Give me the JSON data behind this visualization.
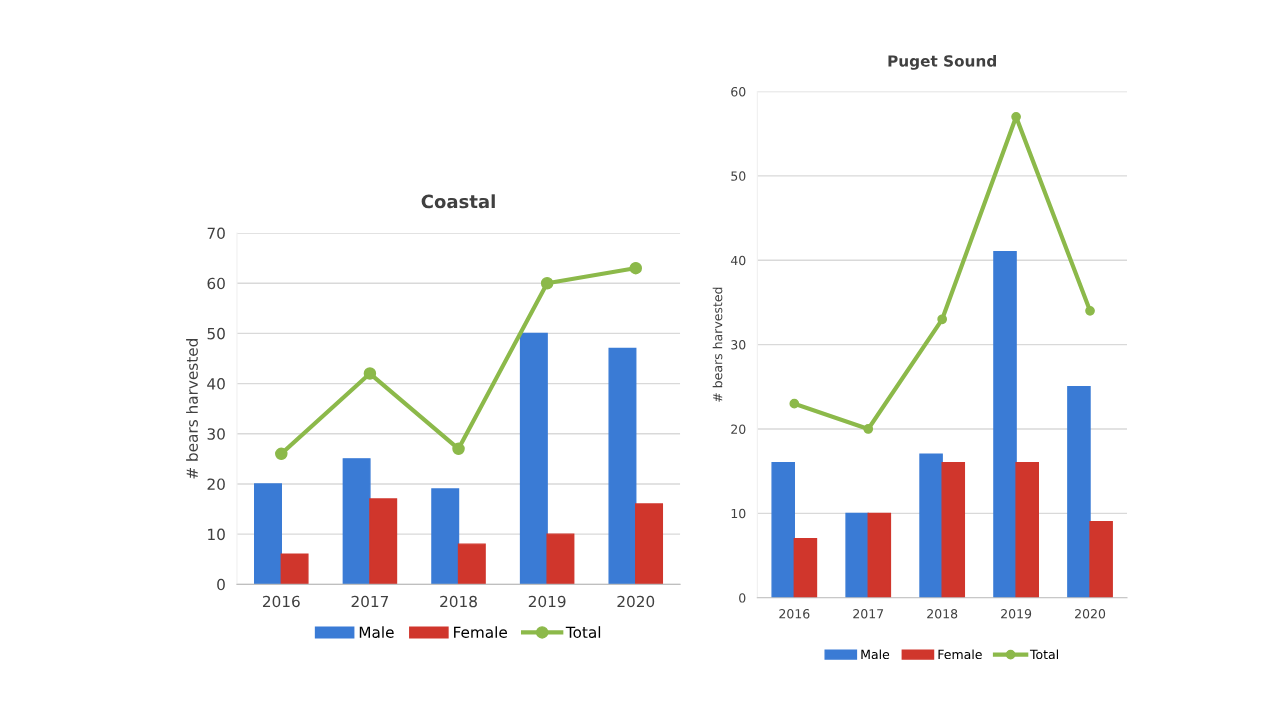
{
  "chart_data": [
    {
      "type": "bar",
      "title": "Coastal",
      "ylabel": "# bears harvested",
      "categories": [
        "2016",
        "2017",
        "2018",
        "2019",
        "2020"
      ],
      "ylim": [
        0,
        70
      ],
      "yticks": [
        0,
        10,
        20,
        30,
        40,
        50,
        60,
        70
      ],
      "grid": "y",
      "legend": "bottom",
      "series": [
        {
          "name": "Male",
          "color": "#3a7bd5",
          "values": [
            20,
            25,
            19,
            50,
            47
          ]
        },
        {
          "name": "Female",
          "color": "#d0362c",
          "values": [
            6,
            17,
            8,
            10,
            16
          ]
        },
        {
          "name": "Total",
          "type": "line",
          "color": "#8cb94a",
          "marker": "circle",
          "values": [
            26,
            42,
            27,
            60,
            63
          ]
        }
      ]
    },
    {
      "type": "bar",
      "title": "Puget Sound",
      "ylabel": "# bears harvested",
      "categories": [
        "2016",
        "2017",
        "2018",
        "2019",
        "2020"
      ],
      "ylim": [
        0,
        60
      ],
      "yticks": [
        0,
        10,
        20,
        30,
        40,
        50,
        60
      ],
      "grid": "y",
      "legend": "bottom",
      "series": [
        {
          "name": "Male",
          "color": "#3a7bd5",
          "values": [
            16,
            10,
            17,
            41,
            25
          ]
        },
        {
          "name": "Female",
          "color": "#d0362c",
          "values": [
            7,
            10,
            16,
            16,
            9
          ]
        },
        {
          "name": "Total",
          "type": "line",
          "color": "#8cb94a",
          "marker": "circle",
          "values": [
            23,
            20,
            33,
            57,
            34
          ]
        }
      ]
    }
  ]
}
